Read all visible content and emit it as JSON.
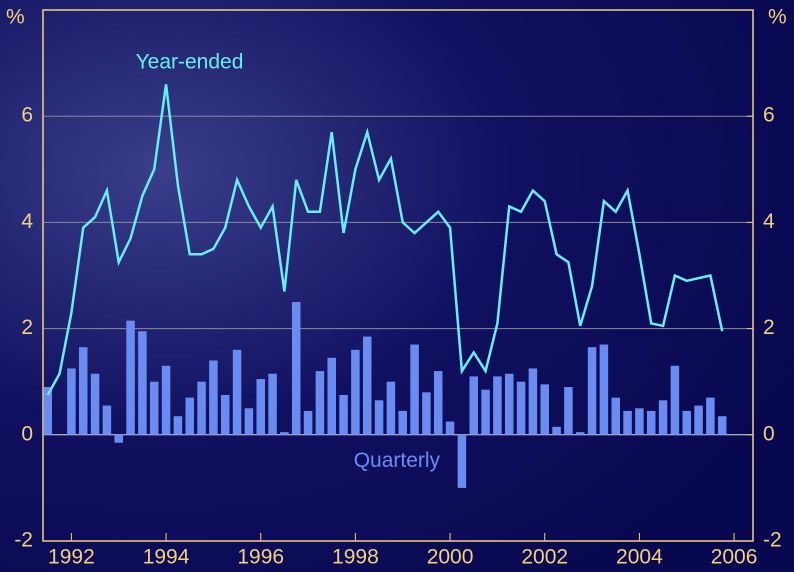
{
  "chart_data": {
    "type": "bar-line",
    "y_label": "%",
    "y2_label": "%",
    "x": [
      1991.5,
      1991.75,
      1992,
      1992.25,
      1992.5,
      1992.75,
      1993,
      1993.25,
      1993.5,
      1993.75,
      1994,
      1994.25,
      1994.5,
      1994.75,
      1995,
      1995.25,
      1995.5,
      1995.75,
      1996,
      1996.25,
      1996.5,
      1996.75,
      1997,
      1997.25,
      1997.5,
      1997.75,
      1998,
      1998.25,
      1998.5,
      1998.75,
      1999,
      1999.25,
      1999.5,
      1999.75,
      2000,
      2000.25,
      2000.5,
      2000.75,
      2001,
      2001.25,
      2001.5,
      2001.75,
      2002,
      2002.25,
      2002.5,
      2002.75,
      2003,
      2003.25,
      2003.5,
      2003.75,
      2004,
      2004.25,
      2004.5,
      2004.75,
      2005,
      2005.25,
      2005.5,
      2005.75
    ],
    "series": [
      {
        "name": "Quarterly",
        "type": "bar",
        "color": "#6a8cf0",
        "values": [
          0.9,
          0.0,
          1.25,
          1.65,
          1.15,
          0.55,
          -0.15,
          2.15,
          1.95,
          1.0,
          1.3,
          0.35,
          0.7,
          1.0,
          1.4,
          0.75,
          1.6,
          0.5,
          1.05,
          1.15,
          0.05,
          2.5,
          0.45,
          1.2,
          1.45,
          0.75,
          1.6,
          1.85,
          0.65,
          1.0,
          0.45,
          1.7,
          0.8,
          1.2,
          0.25,
          -1.0,
          1.1,
          0.85,
          1.1,
          1.15,
          1.0,
          1.25,
          0.95,
          0.15,
          0.9,
          0.05,
          1.65,
          1.7,
          0.7,
          0.45,
          0.5,
          0.45,
          0.65,
          1.3,
          0.45,
          0.55,
          0.7,
          0.35
        ]
      },
      {
        "name": "Year-ended",
        "type": "line",
        "color": "#66eef0",
        "values": [
          0.75,
          1.15,
          2.3,
          3.9,
          4.1,
          4.6,
          3.25,
          3.7,
          4.5,
          5.0,
          6.6,
          4.7,
          3.4,
          3.4,
          3.5,
          3.9,
          4.8,
          4.3,
          3.9,
          4.3,
          2.7,
          4.8,
          4.2,
          4.2,
          5.7,
          3.8,
          5.0,
          5.7,
          4.8,
          5.2,
          4.0,
          3.8,
          4.0,
          4.2,
          3.9,
          1.2,
          1.55,
          1.2,
          2.1,
          4.3,
          4.2,
          4.6,
          4.4,
          3.4,
          3.25,
          2.05,
          2.8,
          4.4,
          4.2,
          4.6,
          3.4,
          2.1,
          2.05,
          3.0,
          2.9,
          2.95,
          3.0,
          1.95
        ]
      }
    ],
    "xlim": [
      1991.4,
      2006.4
    ],
    "xticks": [
      1992,
      1994,
      1996,
      1998,
      2000,
      2002,
      2004,
      2006
    ],
    "ylim": [
      -2,
      8
    ],
    "yticks": [
      -2,
      0,
      2,
      4,
      6
    ],
    "y2lim": [
      -2,
      8
    ],
    "y2ticks": [
      -2,
      0,
      2,
      4,
      6
    ],
    "grid": true
  }
}
